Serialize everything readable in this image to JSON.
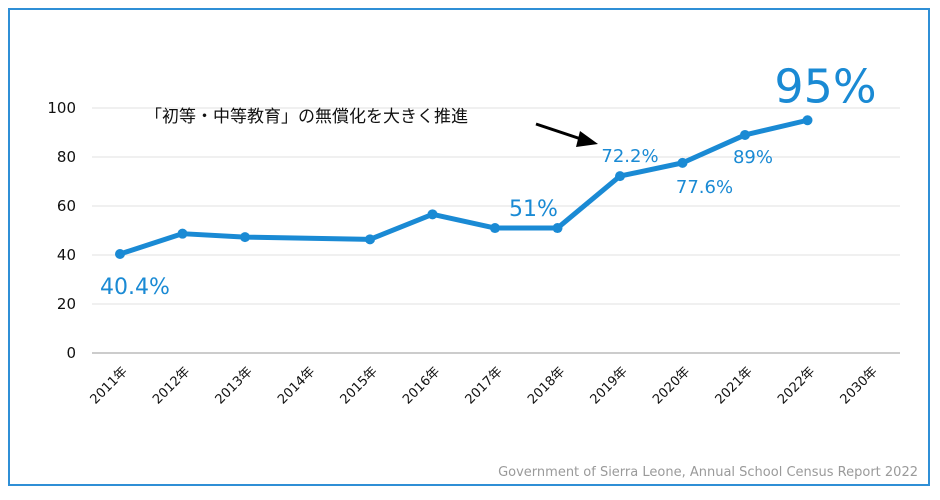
{
  "chart_data": {
    "type": "line",
    "categories": [
      "2011年",
      "2012年",
      "2013年",
      "2014年",
      "2015年",
      "2016年",
      "2017年",
      "2018年",
      "2019年",
      "2020年",
      "2021年",
      "2022年",
      "2030年"
    ],
    "series": [
      {
        "values": [
          40.4,
          48.7,
          47.3,
          null,
          46.4,
          56.6,
          51,
          51,
          72.2,
          77.6,
          89,
          95,
          null
        ]
      }
    ],
    "data_labels": [
      "40.4%",
      null,
      null,
      null,
      null,
      null,
      null,
      "51%",
      "72.2%",
      "77.6%",
      "89%",
      "95%",
      null
    ],
    "ylim": [
      0,
      100
    ],
    "yticks": [
      0,
      20,
      40,
      60,
      80,
      100
    ],
    "grid": true,
    "line_color": "#1a8ad4",
    "annotation": "「初等・中等教育」の無償化を大きく推進",
    "source": "Government of Sierra Leone, Annual School Census Report 2022"
  }
}
